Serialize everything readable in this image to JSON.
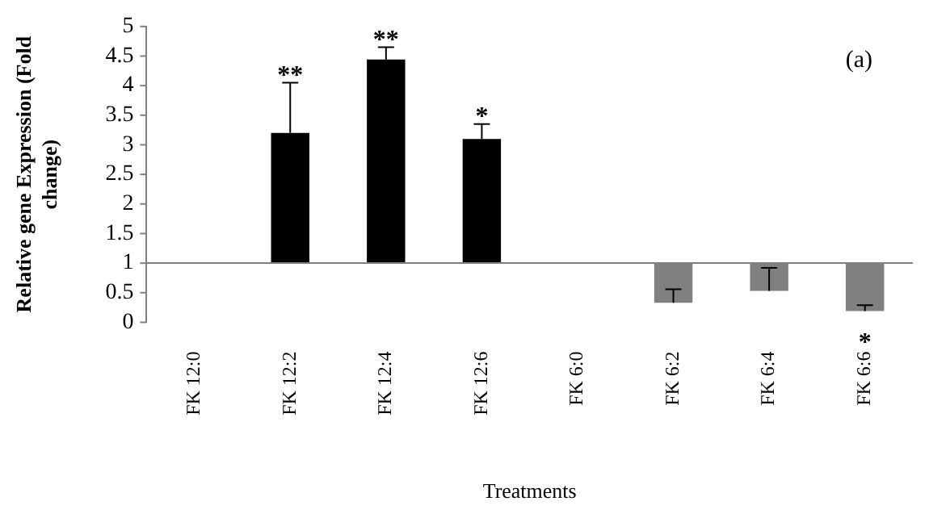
{
  "chart_data": {
    "type": "bar",
    "xlabel": "Treatments",
    "ylabel": "Relative gene Expression (Fold change)",
    "categories": [
      "FK 12:0",
      "FK 12:2",
      "FK 12:4",
      "FK 12:6",
      "FK 6:0",
      "FK 6:2",
      "FK 6:4",
      "FK 6:6"
    ],
    "base": [
      null,
      1,
      1,
      1,
      null,
      1,
      1,
      1
    ],
    "values": [
      null,
      2.2,
      3.44,
      2.1,
      null,
      -0.67,
      -0.47,
      -0.81
    ],
    "ref_lines": [
      {
        "axis": "y",
        "value": 1,
        "color": "#808080"
      }
    ],
    "colors": [
      "#000000",
      "#000000",
      "#000000",
      "#000000",
      "#808080",
      "#808080",
      "#808080",
      "#808080"
    ],
    "errors": [
      null,
      [
        3.2,
        4.05
      ],
      [
        4.44,
        4.65
      ],
      [
        3.1,
        3.35
      ],
      null,
      [
        0.33,
        0.56
      ],
      [
        0.53,
        0.92
      ],
      [
        0.19,
        0.29
      ]
    ],
    "ylim": [
      0,
      5
    ],
    "yticks": [
      0,
      0.5,
      1,
      1.5,
      2,
      2.5,
      3,
      3.5,
      4,
      4.5,
      5
    ],
    "grid": false,
    "legend": false,
    "annotations": [
      "(a)",
      {
        "text": "**",
        "x": "FK 12:2",
        "y": 4.05
      },
      {
        "text": "**",
        "x": "FK 12:4",
        "y": 4.65
      },
      {
        "text": "*",
        "x": "FK 12:6",
        "y": 3.35
      },
      {
        "text": "*",
        "x": "FK 6:6",
        "y": 0.19
      }
    ]
  }
}
